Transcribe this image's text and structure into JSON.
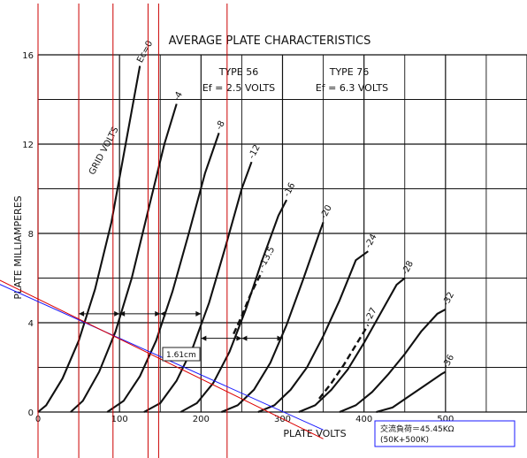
{
  "chart_data": {
    "type": "line",
    "title": "AVERAGE PLATE CHARACTERISTICS",
    "tube_labels": [
      {
        "type": "TYPE 56",
        "filament": "Ef = 2.5 VOLTS"
      },
      {
        "type": "TYPE 76",
        "filament": "Ef = 6.3 VOLTS"
      }
    ],
    "xlabel": "PLATE   VOLTS",
    "ylabel": "PLATE   MILLIAMPERES",
    "grid_label": "GRID   VOLTS",
    "xlim": [
      0,
      600
    ],
    "ylim": [
      0,
      16
    ],
    "x_ticks": [
      "0",
      "100",
      "200",
      "300",
      "400",
      "500"
    ],
    "y_ticks": [
      "0",
      "4",
      "8",
      "12",
      "16"
    ],
    "grid": true,
    "series": [
      {
        "name": "Ec=0",
        "label": "Ec=0",
        "points": [
          [
            0,
            0
          ],
          [
            10,
            0.3
          ],
          [
            30,
            1.5
          ],
          [
            50,
            3.2
          ],
          [
            70,
            5.5
          ],
          [
            90,
            8.5
          ],
          [
            105,
            11.5
          ],
          [
            115,
            13.5
          ],
          [
            125,
            15.5
          ]
        ]
      },
      {
        "name": "-4",
        "label": "-4",
        "points": [
          [
            40,
            0
          ],
          [
            55,
            0.5
          ],
          [
            75,
            1.8
          ],
          [
            95,
            3.6
          ],
          [
            115,
            6.0
          ],
          [
            135,
            9.0
          ],
          [
            155,
            12.0
          ],
          [
            170,
            13.8
          ]
        ]
      },
      {
        "name": "-8",
        "label": "-8",
        "points": [
          [
            85,
            0
          ],
          [
            105,
            0.5
          ],
          [
            125,
            1.6
          ],
          [
            145,
            3.2
          ],
          [
            165,
            5.4
          ],
          [
            185,
            8.0
          ],
          [
            205,
            10.7
          ],
          [
            222,
            12.5
          ]
        ]
      },
      {
        "name": "-12",
        "label": "-12",
        "points": [
          [
            130,
            0
          ],
          [
            150,
            0.4
          ],
          [
            170,
            1.4
          ],
          [
            190,
            2.9
          ],
          [
            210,
            4.9
          ],
          [
            230,
            7.4
          ],
          [
            250,
            10.0
          ],
          [
            262,
            11.2
          ]
        ]
      },
      {
        "name": "-16",
        "label": "-16",
        "points": [
          [
            175,
            0
          ],
          [
            195,
            0.4
          ],
          [
            215,
            1.3
          ],
          [
            235,
            2.7
          ],
          [
            255,
            4.6
          ],
          [
            275,
            6.8
          ],
          [
            295,
            8.8
          ],
          [
            305,
            9.5
          ]
        ]
      },
      {
        "name": "-20",
        "label": "-20",
        "points": [
          [
            225,
            0
          ],
          [
            245,
            0.3
          ],
          [
            265,
            1.0
          ],
          [
            285,
            2.2
          ],
          [
            305,
            3.9
          ],
          [
            325,
            5.9
          ],
          [
            345,
            8.0
          ],
          [
            350,
            8.5
          ]
        ]
      },
      {
        "name": "-24",
        "label": "-24",
        "points": [
          [
            270,
            0
          ],
          [
            290,
            0.3
          ],
          [
            310,
            1.0
          ],
          [
            330,
            2.0
          ],
          [
            350,
            3.4
          ],
          [
            370,
            5.0
          ],
          [
            390,
            6.8
          ],
          [
            405,
            7.2
          ]
        ]
      },
      {
        "name": "-28",
        "label": "-28",
        "points": [
          [
            320,
            0
          ],
          [
            340,
            0.3
          ],
          [
            360,
            1.0
          ],
          [
            380,
            1.9
          ],
          [
            400,
            3.1
          ],
          [
            420,
            4.4
          ],
          [
            440,
            5.7
          ],
          [
            450,
            6.0
          ]
        ]
      },
      {
        "name": "-32",
        "label": "-32",
        "points": [
          [
            370,
            0
          ],
          [
            390,
            0.3
          ],
          [
            410,
            0.9
          ],
          [
            430,
            1.7
          ],
          [
            450,
            2.6
          ],
          [
            470,
            3.6
          ],
          [
            490,
            4.4
          ],
          [
            500,
            4.6
          ]
        ]
      },
      {
        "name": "-36",
        "label": "-36",
        "points": [
          [
            415,
            0
          ],
          [
            435,
            0.2
          ],
          [
            455,
            0.7
          ],
          [
            475,
            1.2
          ],
          [
            495,
            1.7
          ],
          [
            500,
            1.8
          ]
        ]
      }
    ],
    "dashed_curves": [
      {
        "label": "-13.5",
        "points": [
          [
            240,
            3.5
          ],
          [
            250,
            4.3
          ],
          [
            260,
            5.2
          ],
          [
            268,
            5.8
          ],
          [
            275,
            6.3
          ]
        ]
      },
      {
        "label": "-27",
        "points": [
          [
            345,
            0.6
          ],
          [
            360,
            1.3
          ],
          [
            375,
            2.1
          ],
          [
            390,
            3.0
          ],
          [
            400,
            3.6
          ],
          [
            405,
            3.9
          ]
        ]
      }
    ],
    "load_lines": [
      {
        "color": "#1a1aff",
        "points": [
          [
            -125,
            7.0
          ],
          [
            350,
            -0.8
          ]
        ]
      },
      {
        "color": "#dd0000",
        "points": [
          [
            -125,
            7.3
          ],
          [
            350,
            -1.2
          ]
        ]
      }
    ],
    "vertical_markers_x": [
      -50,
      0,
      50,
      92,
      135,
      148,
      232
    ],
    "swing_arrows": [
      {
        "y": 4.4,
        "x_from": 50,
        "x_to": 100
      },
      {
        "y": 4.4,
        "x_from": 100,
        "x_to": 150
      },
      {
        "y": 4.4,
        "x_from": 150,
        "x_to": 200
      },
      {
        "y": 3.3,
        "x_from": 200,
        "x_to": 250
      },
      {
        "y": 3.3,
        "x_from": 250,
        "x_to": 300
      }
    ],
    "callout_text": "1.61cm",
    "annotation": {
      "line1": "交流負荷＝45.45KΩ",
      "line2": "(50K+500K)"
    },
    "colors": {
      "ink": "#111111",
      "red": "#cc0000",
      "blue": "#1a1aff",
      "grid": "#111111"
    }
  }
}
